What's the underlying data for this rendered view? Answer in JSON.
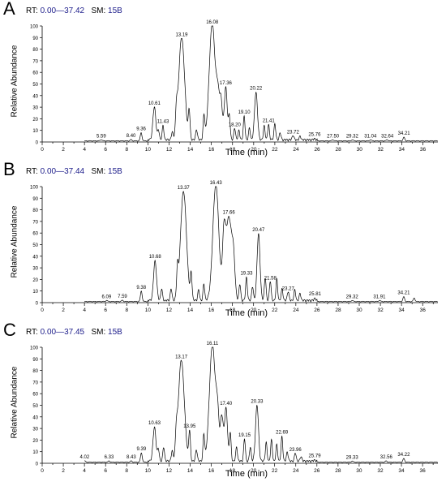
{
  "panels": [
    {
      "letter": "A",
      "rt_label": "RT:",
      "rt_range": "0.00—37.42",
      "sm_label": "SM:",
      "sm_value": "15B",
      "ylabel": "Relative Abundance",
      "xlabel": "Time (min)"
    },
    {
      "letter": "B",
      "rt_label": "RT:",
      "rt_range": "0.00—37.44",
      "sm_label": "SM:",
      "sm_value": "15B",
      "ylabel": "Relative Abundance",
      "xlabel": "Time (min)"
    },
    {
      "letter": "C",
      "rt_label": "RT:",
      "rt_range": "0.00—37.45",
      "sm_label": "SM:",
      "sm_value": "15B",
      "ylabel": "Relative Abundance",
      "xlabel": "Time (min)"
    }
  ],
  "colors": {
    "trace": "#000000",
    "rt_text": "#1c1c8a"
  },
  "chart_data": [
    {
      "type": "line",
      "xlim": [
        0,
        37.42
      ],
      "ylim": [
        0,
        100
      ],
      "x_ticks": [
        0,
        2,
        4,
        6,
        8,
        10,
        12,
        14,
        16,
        18,
        20,
        22,
        24,
        26,
        28,
        30,
        32,
        34,
        36
      ],
      "y_ticks": [
        0,
        10,
        20,
        30,
        40,
        50,
        60,
        70,
        80,
        90,
        100
      ],
      "peaks": [
        {
          "rt": "5.59",
          "x": 5.59,
          "y": 1
        },
        {
          "rt": "8.40",
          "x": 8.4,
          "y": 1
        },
        {
          "rt": "9.36",
          "x": 9.36,
          "y": 7
        },
        {
          "rt": "10.61",
          "x": 10.61,
          "y": 28
        },
        {
          "rt": "11.43",
          "x": 11.43,
          "y": 12
        },
        {
          "rt": "13.19",
          "x": 13.19,
          "y": 88
        },
        {
          "rt": "16.08",
          "x": 16.08,
          "y": 100
        },
        {
          "rt": "17.36",
          "x": 17.36,
          "y": 45
        },
        {
          "rt": "18.20",
          "x": 18.2,
          "y": 10
        },
        {
          "rt": "19.10",
          "x": 19.1,
          "y": 20
        },
        {
          "rt": "20.22",
          "x": 20.22,
          "y": 41
        },
        {
          "rt": "21.41",
          "x": 21.41,
          "y": 13
        },
        {
          "rt": "23.72",
          "x": 23.72,
          "y": 4
        },
        {
          "rt": "25.76",
          "x": 25.76,
          "y": 1
        },
        {
          "rt": "27.50",
          "x": 27.5,
          "y": 1
        },
        {
          "rt": "29.32",
          "x": 29.32,
          "y": 1
        },
        {
          "rt": "31.04",
          "x": 31.04,
          "y": 1
        },
        {
          "rt": "32.64",
          "x": 32.64,
          "y": 1
        },
        {
          "rt": "34.21",
          "x": 34.21,
          "y": 3
        }
      ],
      "extra_peaks": [
        {
          "x": 11.0,
          "y": 8
        },
        {
          "x": 12.3,
          "y": 6
        },
        {
          "x": 12.7,
          "y": 18
        },
        {
          "x": 13.9,
          "y": 24
        },
        {
          "x": 14.6,
          "y": 9
        },
        {
          "x": 15.3,
          "y": 20
        },
        {
          "x": 16.6,
          "y": 30
        },
        {
          "x": 16.9,
          "y": 34
        },
        {
          "x": 17.7,
          "y": 20
        },
        {
          "x": 18.6,
          "y": 8
        },
        {
          "x": 19.6,
          "y": 10
        },
        {
          "x": 21.0,
          "y": 12
        },
        {
          "x": 22.0,
          "y": 14
        },
        {
          "x": 22.5,
          "y": 6
        },
        {
          "x": 24.4,
          "y": 3
        }
      ]
    },
    {
      "type": "line",
      "xlim": [
        0,
        37.44
      ],
      "ylim": [
        0,
        100
      ],
      "x_ticks": [
        0,
        2,
        4,
        6,
        8,
        10,
        12,
        14,
        16,
        18,
        20,
        22,
        24,
        26,
        28,
        30,
        32,
        34,
        36
      ],
      "y_ticks": [
        0,
        10,
        20,
        30,
        40,
        50,
        60,
        70,
        80,
        90,
        100
      ],
      "peaks": [
        {
          "rt": "6.09",
          "x": 6.09,
          "y": 1
        },
        {
          "rt": "7.59",
          "x": 7.59,
          "y": 1
        },
        {
          "rt": "9.38",
          "x": 9.38,
          "y": 9
        },
        {
          "rt": "10.68",
          "x": 10.68,
          "y": 34
        },
        {
          "rt": "13.37",
          "x": 13.37,
          "y": 94
        },
        {
          "rt": "16.43",
          "x": 16.43,
          "y": 100
        },
        {
          "rt": "17.66",
          "x": 17.66,
          "y": 72
        },
        {
          "rt": "19.33",
          "x": 19.33,
          "y": 20
        },
        {
          "rt": "20.47",
          "x": 20.47,
          "y": 57
        },
        {
          "rt": "21.58",
          "x": 21.58,
          "y": 17
        },
        {
          "rt": "23.27",
          "x": 23.27,
          "y": 8
        },
        {
          "rt": "25.81",
          "x": 25.81,
          "y": 2
        },
        {
          "rt": "29.32",
          "x": 29.32,
          "y": 1
        },
        {
          "rt": "31.91",
          "x": 31.91,
          "y": 1
        },
        {
          "rt": "34.21",
          "x": 34.21,
          "y": 4
        }
      ],
      "extra_peaks": [
        {
          "x": 11.3,
          "y": 10
        },
        {
          "x": 12.2,
          "y": 10
        },
        {
          "x": 12.8,
          "y": 22
        },
        {
          "x": 14.1,
          "y": 22
        },
        {
          "x": 14.8,
          "y": 9
        },
        {
          "x": 15.3,
          "y": 14
        },
        {
          "x": 17.2,
          "y": 48
        },
        {
          "x": 18.1,
          "y": 28
        },
        {
          "x": 18.7,
          "y": 14
        },
        {
          "x": 19.9,
          "y": 12
        },
        {
          "x": 21.1,
          "y": 20
        },
        {
          "x": 22.2,
          "y": 18
        },
        {
          "x": 22.7,
          "y": 10
        },
        {
          "x": 23.9,
          "y": 9
        },
        {
          "x": 24.4,
          "y": 6
        },
        {
          "x": 35.2,
          "y": 3
        }
      ]
    },
    {
      "type": "line",
      "xlim": [
        0,
        37.45
      ],
      "ylim": [
        0,
        100
      ],
      "x_ticks": [
        0,
        2,
        4,
        6,
        8,
        10,
        12,
        14,
        16,
        18,
        20,
        22,
        24,
        26,
        28,
        30,
        32,
        34,
        36
      ],
      "y_ticks": [
        0,
        10,
        20,
        30,
        40,
        50,
        60,
        70,
        80,
        90,
        100
      ],
      "peaks": [
        {
          "rt": "4.02",
          "x": 4.02,
          "y": 1
        },
        {
          "rt": "6.33",
          "x": 6.33,
          "y": 1
        },
        {
          "rt": "8.43",
          "x": 8.43,
          "y": 1
        },
        {
          "rt": "9.39",
          "x": 9.39,
          "y": 8
        },
        {
          "rt": "10.63",
          "x": 10.63,
          "y": 29
        },
        {
          "rt": "13.17",
          "x": 13.17,
          "y": 87
        },
        {
          "rt": "13.95",
          "x": 13.95,
          "y": 25
        },
        {
          "rt": "16.11",
          "x": 16.11,
          "y": 100
        },
        {
          "rt": "17.40",
          "x": 17.4,
          "y": 45
        },
        {
          "rt": "19.15",
          "x": 19.15,
          "y": 19
        },
        {
          "rt": "20.33",
          "x": 20.33,
          "y": 48
        },
        {
          "rt": "22.69",
          "x": 22.69,
          "y": 21
        },
        {
          "rt": "23.96",
          "x": 23.96,
          "y": 7
        },
        {
          "rt": "25.79",
          "x": 25.79,
          "y": 1
        },
        {
          "rt": "29.33",
          "x": 29.33,
          "y": 1
        },
        {
          "rt": "32.56",
          "x": 32.56,
          "y": 1
        },
        {
          "rt": "34.22",
          "x": 34.22,
          "y": 3
        }
      ],
      "extra_peaks": [
        {
          "x": 11.0,
          "y": 10
        },
        {
          "x": 11.5,
          "y": 12
        },
        {
          "x": 12.3,
          "y": 8
        },
        {
          "x": 12.7,
          "y": 16
        },
        {
          "x": 14.6,
          "y": 10
        },
        {
          "x": 15.3,
          "y": 22
        },
        {
          "x": 16.6,
          "y": 33
        },
        {
          "x": 17.0,
          "y": 38
        },
        {
          "x": 17.8,
          "y": 24
        },
        {
          "x": 18.4,
          "y": 12
        },
        {
          "x": 19.7,
          "y": 12
        },
        {
          "x": 21.2,
          "y": 16
        },
        {
          "x": 21.7,
          "y": 18
        },
        {
          "x": 22.2,
          "y": 14
        },
        {
          "x": 23.2,
          "y": 8
        },
        {
          "x": 24.5,
          "y": 4
        }
      ]
    }
  ]
}
